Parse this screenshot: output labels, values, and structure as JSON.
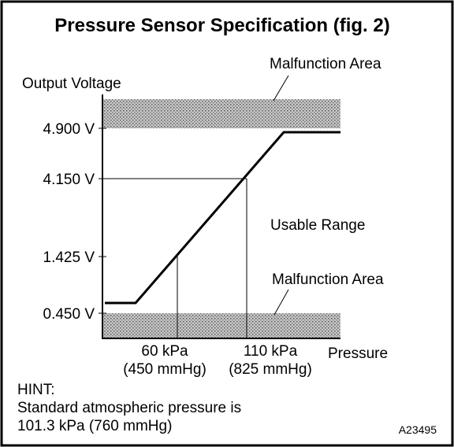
{
  "title": "Pressure Sensor Specification (fig. 2)",
  "y_axis": {
    "label": "Output Voltage",
    "ticks": [
      "4.900 V",
      "4.150 V",
      "1.425 V",
      "0.450 V"
    ]
  },
  "x_axis": {
    "label": "Pressure",
    "ticks": [
      [
        "60 kPa",
        "(450 mmHg)"
      ],
      [
        "110 kPa",
        "(825 mmHg)"
      ]
    ]
  },
  "regions": {
    "upper": "Malfunction Area",
    "middle": "Usable Range",
    "lower": "Malfunction Area"
  },
  "hint": {
    "heading": "HINT:",
    "lines": [
      "Standard atmospheric pressure is",
      "101.3 kPa (760 mmHg)"
    ]
  },
  "figure_id": "A23495"
}
